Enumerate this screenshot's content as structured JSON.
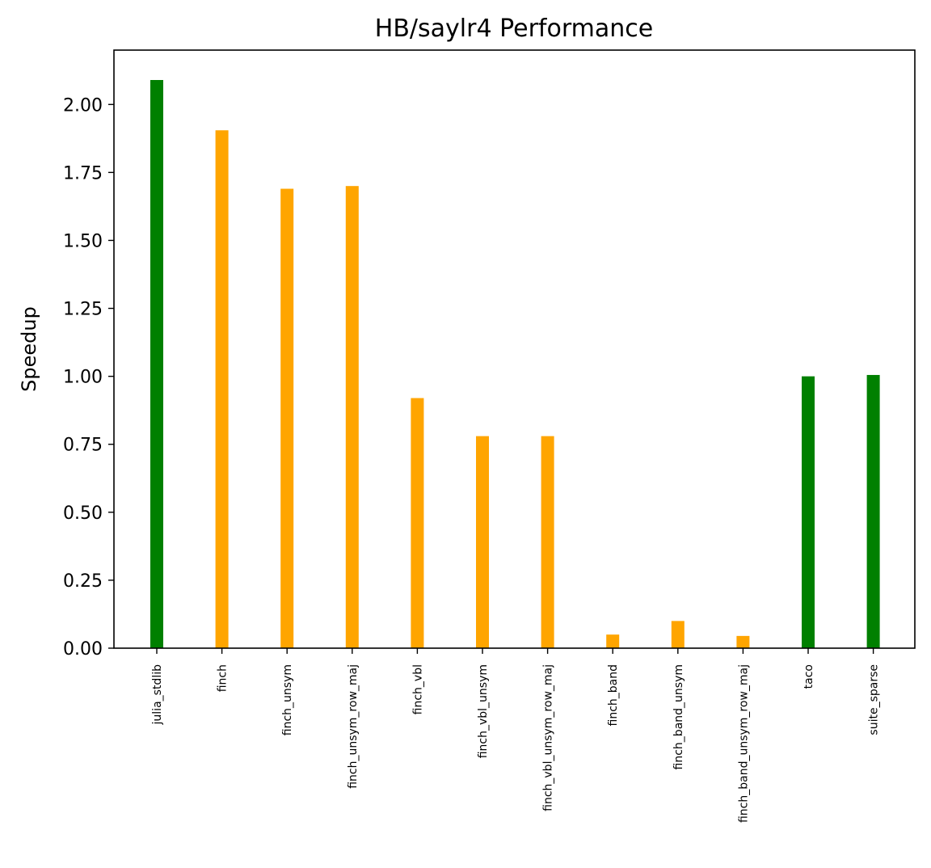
{
  "chart_data": {
    "type": "bar",
    "title": "HB/saylr4 Performance",
    "xlabel": "",
    "ylabel": "Speedup",
    "ylim": [
      0,
      2.2
    ],
    "yticks": [
      "0.00",
      "0.25",
      "0.50",
      "0.75",
      "1.00",
      "1.25",
      "1.50",
      "1.75",
      "2.00"
    ],
    "grid": false,
    "categories": [
      "julia_stdlib",
      "finch",
      "finch_unsym",
      "finch_unsym_row_maj",
      "finch_vbl",
      "finch_vbl_unsym",
      "finch_vbl_unsym_row_maj",
      "finch_band",
      "finch_band_unsym",
      "finch_band_unsym_row_maj",
      "taco",
      "suite_sparse"
    ],
    "values": [
      2.09,
      1.905,
      1.69,
      1.7,
      0.92,
      0.78,
      0.78,
      0.05,
      0.1,
      0.045,
      1.0,
      1.005
    ],
    "colors": [
      "#008000",
      "#ffa500",
      "#ffa500",
      "#ffa500",
      "#ffa500",
      "#ffa500",
      "#ffa500",
      "#ffa500",
      "#ffa500",
      "#ffa500",
      "#008000",
      "#008000"
    ]
  }
}
